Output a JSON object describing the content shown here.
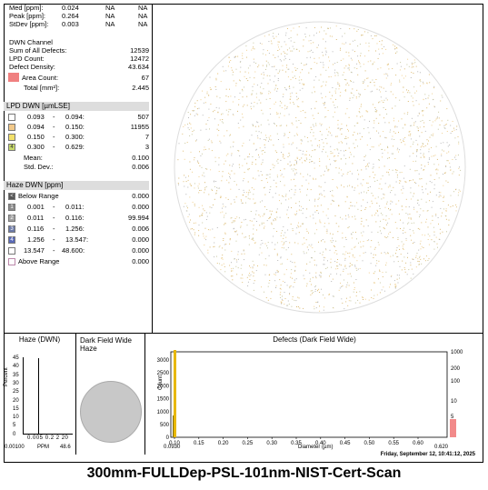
{
  "stats": {
    "rows": [
      {
        "label": "Med [ppm]:",
        "v1": "0.024",
        "v2": "NA",
        "v3": "NA"
      },
      {
        "label": "Peak [ppm]:",
        "v1": "0.264",
        "v2": "NA",
        "v3": "NA"
      },
      {
        "label": "StDev [ppm]:",
        "v1": "0.003",
        "v2": "NA",
        "v3": "NA"
      }
    ]
  },
  "dwn": {
    "title": "DWN Channel",
    "sum_label": "Sum of All Defects:",
    "sum": "12539",
    "lpd_label": "LPD Count:",
    "lpd": "12472",
    "density_label": "Defect Density:",
    "density": "43.634",
    "area_label": "Area Count:",
    "area": "67",
    "total_label": "Total [mm²]:",
    "total": "2.445"
  },
  "lpd": {
    "title": "LPD DWN  [µmLSE]",
    "bins": [
      {
        "lo": "0.093",
        "hi": "0.094:",
        "count": "507",
        "color": "#ffffff",
        "num": ""
      },
      {
        "lo": "0.094",
        "hi": "0.150:",
        "count": "11955",
        "color": "#f2c98a",
        "num": ""
      },
      {
        "lo": "0.150",
        "hi": "0.300:",
        "count": "7",
        "color": "#f2e06a",
        "num": ""
      },
      {
        "lo": "0.300",
        "hi": "0.629:",
        "count": "3",
        "color": "#c7d96a",
        "num": "4"
      }
    ],
    "mean_label": "Mean:",
    "mean": "0.100",
    "std_label": "Std. Dev.:",
    "std": "0.006"
  },
  "haze": {
    "title": "Haze DWN  [ppm]",
    "below_label": "Below Range",
    "below": "0.000",
    "bins": [
      {
        "num": "1",
        "lo": "0.001",
        "hi": "0.011:",
        "val": "0.000",
        "color": "#8a8a8a"
      },
      {
        "num": "2",
        "lo": "0.011",
        "hi": "0.116:",
        "val": "99.994",
        "color": "#a0a0a0"
      },
      {
        "num": "3",
        "lo": "0.116",
        "hi": "1.256:",
        "val": "0.006",
        "color": "#6c7aa8"
      },
      {
        "num": "4",
        "lo": "1.256",
        "hi": "13.547:",
        "val": "0.000",
        "color": "#5a6ab8"
      },
      {
        "num": "",
        "lo": "13.547",
        "hi": "48.600:",
        "val": "0.000",
        "color": "#ffffff"
      }
    ],
    "above_label": "Above Range",
    "above": "0.000"
  },
  "bottom": {
    "haze_title": "Haze (DWN)",
    "haze_ylabel": "Percent",
    "haze_yticks": [
      "45",
      "40",
      "35",
      "30",
      "25",
      "20",
      "15",
      "10",
      "5",
      "0"
    ],
    "haze_xticks": [
      "0.005",
      "0.2",
      "2",
      "20"
    ],
    "haze_xmin": "0.00100",
    "haze_xunit": "PPM",
    "haze_xmax": "48.6",
    "dfw_title": "Dark Field Wide",
    "dfw_sub": "Haze",
    "defects_title": "Defects (Dark Field Wide)",
    "count_label": "Count",
    "y_left": [
      "3000",
      "2500",
      "2000",
      "1500",
      "1000",
      "500",
      "0"
    ],
    "y_right": [
      "1000",
      "200",
      "100",
      "10",
      "5",
      "2"
    ],
    "x_ticks": [
      "0.10",
      "0.15",
      "0.20",
      "0.25",
      "0.30",
      "0.35",
      "0.40",
      "0.45",
      "0.50",
      "0.55",
      "0.60"
    ],
    "x_min": "0.0930",
    "x_label": "Diameter (µm)",
    "x_max": "0.620"
  },
  "timestamp": "Friday, September 12, 10:41:12, 2025",
  "footer_title": "300mm-FULLDep-PSL-101nm-NIST-Cert-Scan",
  "colors": {
    "area_swatch": "#f08080",
    "bar_yellow": "#e8b800",
    "bar_pink": "#f28a8a"
  }
}
